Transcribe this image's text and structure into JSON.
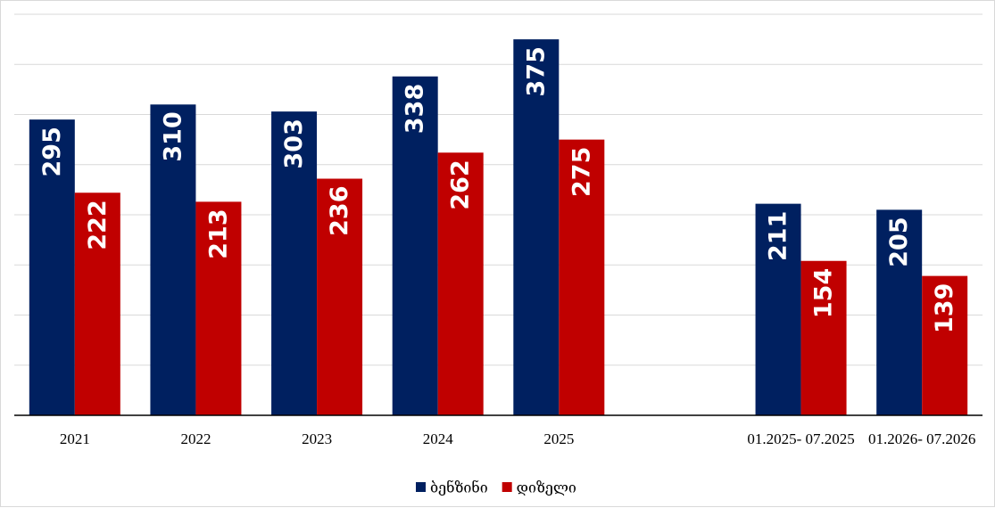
{
  "chart_data": {
    "type": "bar",
    "categories": [
      "2021",
      "2022",
      "2023",
      "2024",
      "2025",
      "",
      "01.2025- 07.2025",
      "01.2026- 07.2026"
    ],
    "series": [
      {
        "name": "ბენზინი",
        "color": "#002060",
        "values": [
          295,
          310,
          303,
          338,
          375,
          null,
          211,
          205
        ]
      },
      {
        "name": "დიზელი",
        "color": "#C00000",
        "values": [
          222,
          213,
          236,
          262,
          275,
          null,
          154,
          139
        ]
      }
    ],
    "title": "",
    "xlabel": "",
    "ylabel": "",
    "ylim": [
      0,
      400
    ],
    "y_tick_labels_shown": false,
    "grid": true,
    "legend": "bottom-center"
  }
}
